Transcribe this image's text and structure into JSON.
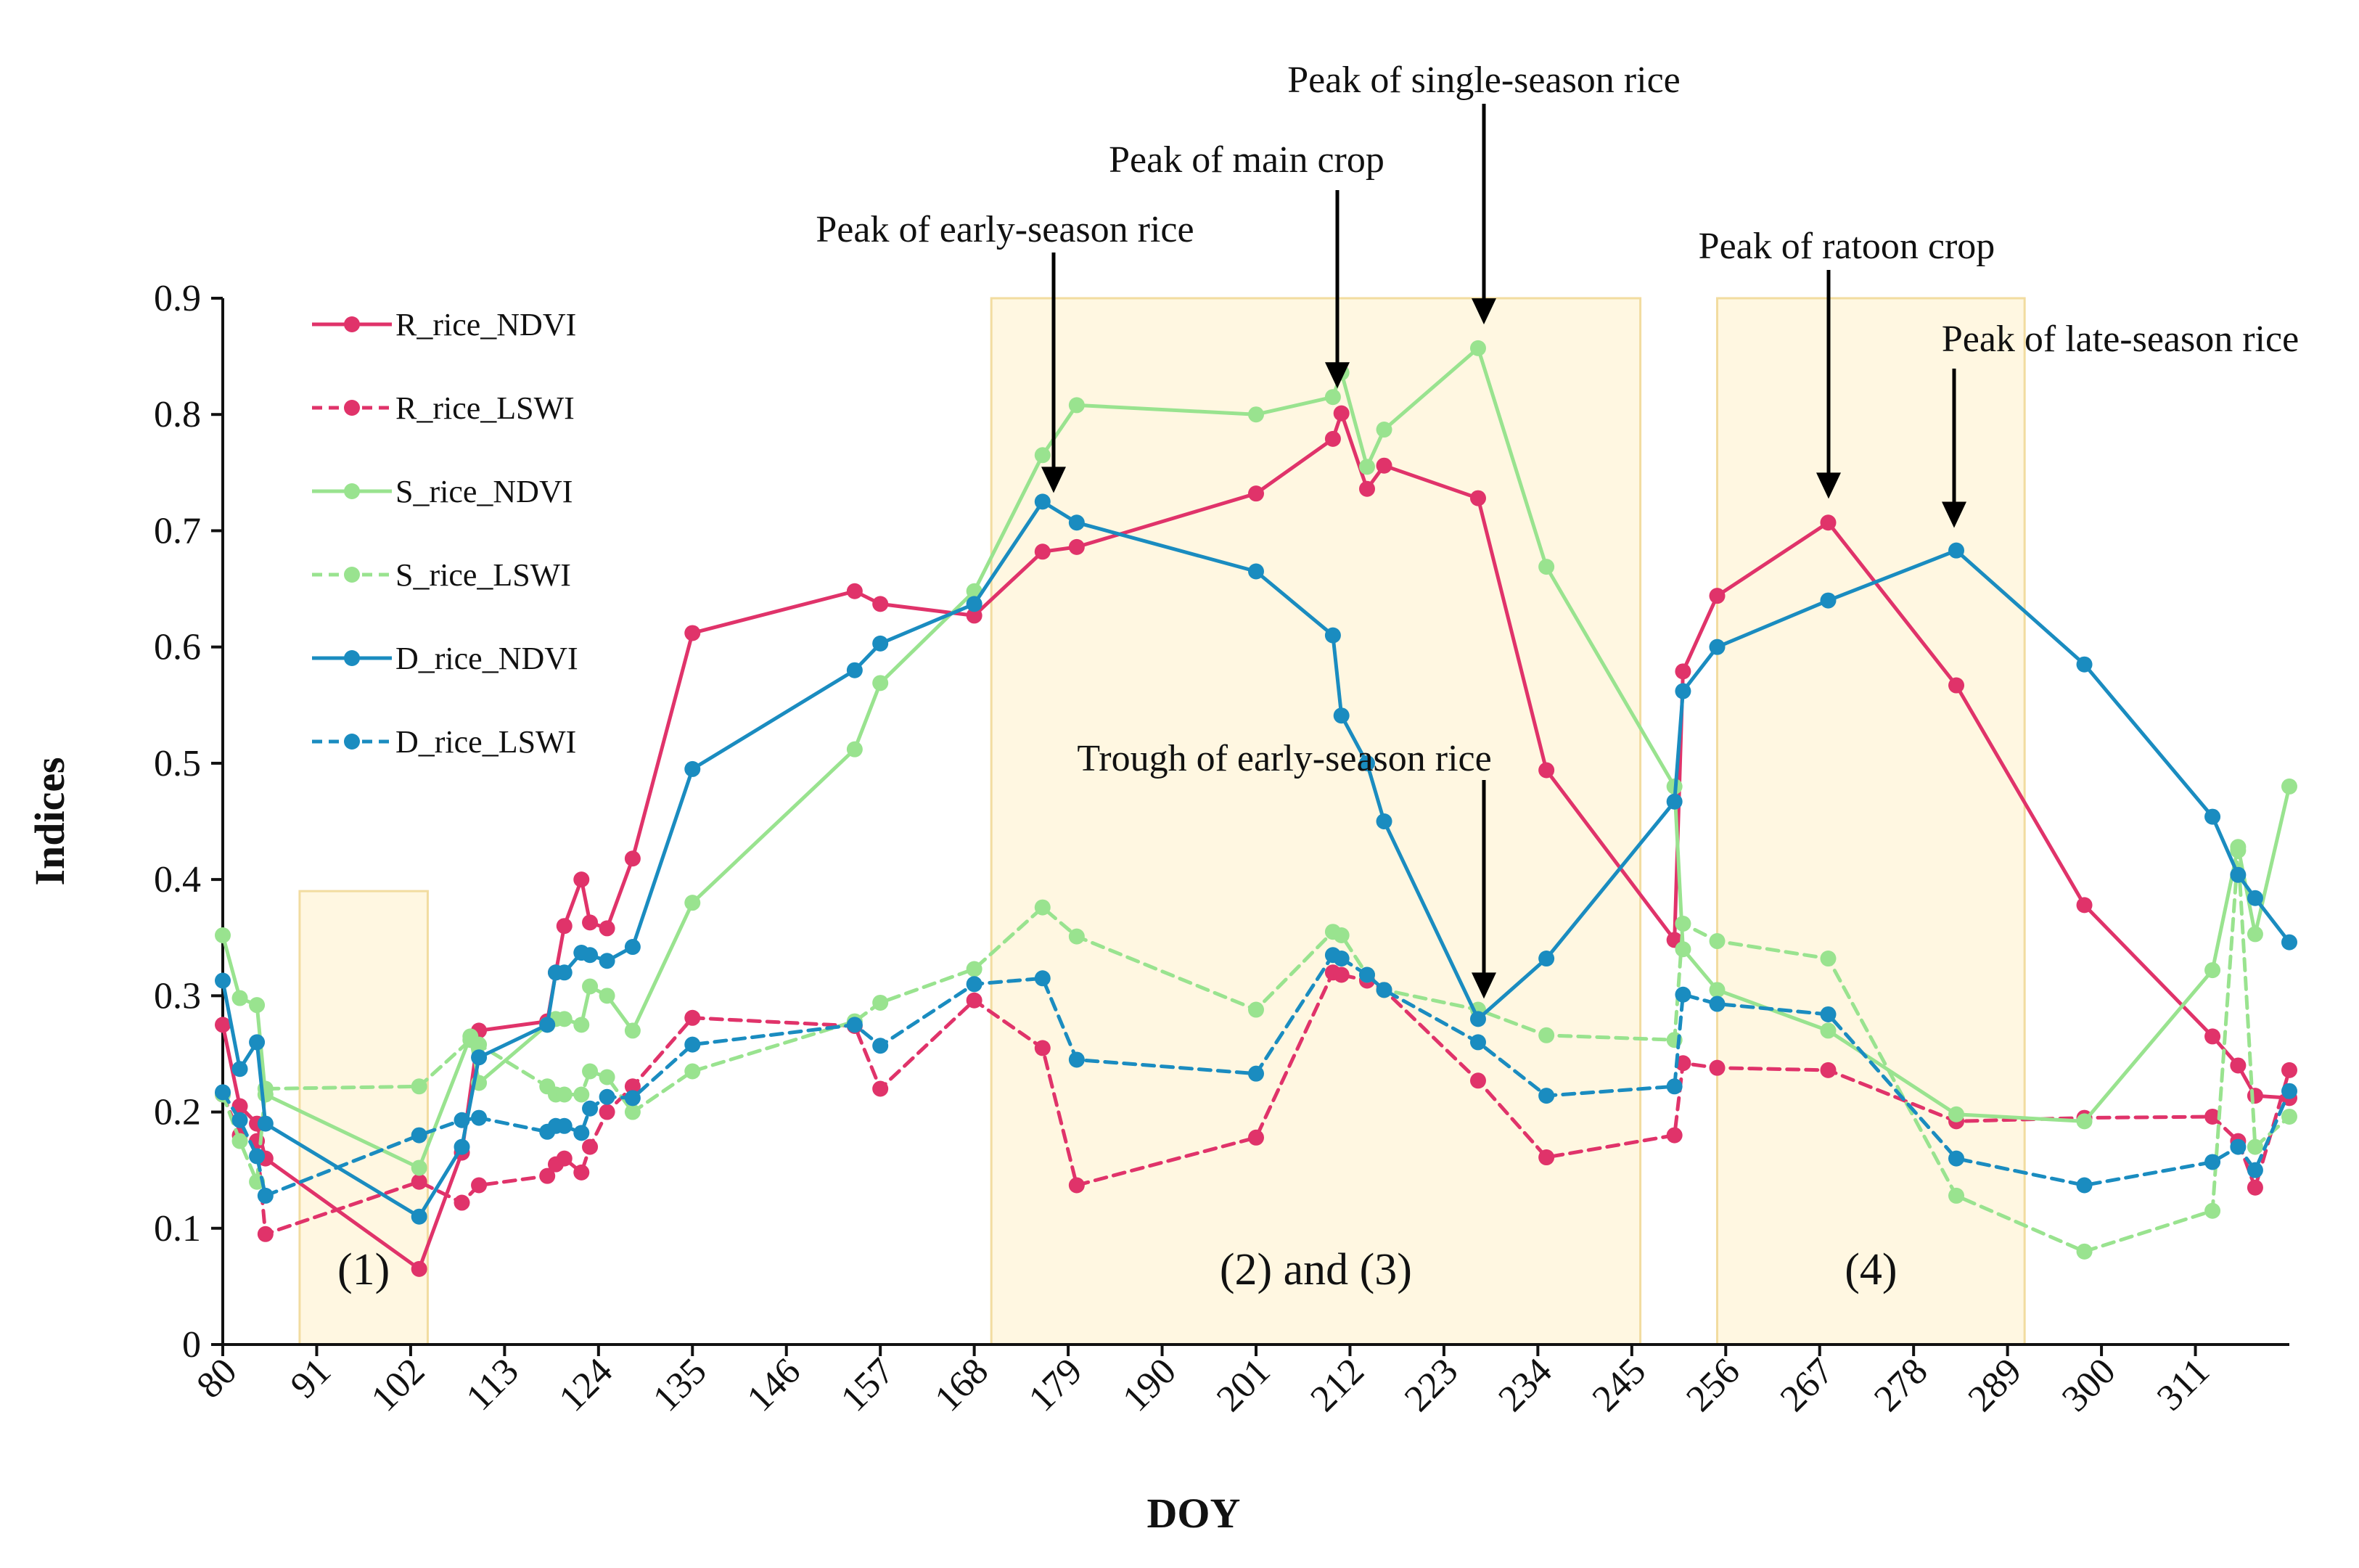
{
  "chart_data": {
    "type": "line",
    "xlabel": "DOY",
    "ylabel": "Indices",
    "xlim": [
      80,
      322
    ],
    "ylim": [
      0,
      0.9
    ],
    "x_ticks": [
      80,
      91,
      102,
      113,
      124,
      135,
      146,
      157,
      168,
      179,
      190,
      201,
      212,
      223,
      234,
      245,
      256,
      267,
      278,
      289,
      300,
      311
    ],
    "y_ticks": [
      0,
      0.1,
      0.2,
      0.3,
      0.4,
      0.5,
      0.6,
      0.7,
      0.8,
      0.9
    ],
    "y_tick_labels": [
      "0",
      "0.1",
      "0.2",
      "0.3",
      "0.4",
      "0.5",
      "0.6",
      "0.7",
      "0.8",
      "0.9"
    ],
    "grid": false,
    "legend_position": "top-left",
    "regions": [
      {
        "label": "(1)",
        "x_start": 89,
        "x_end": 104,
        "y_top": 0.39
      },
      {
        "label": "(2) and (3)",
        "x_start": 170,
        "x_end": 246,
        "y_top": 0.9
      },
      {
        "label": "(4)",
        "x_start": 255,
        "x_end": 291,
        "y_top": 0.9
      }
    ],
    "annotations": [
      {
        "text": "Peak of early-season rice",
        "x": 176,
        "y": 0.725
      },
      {
        "text": "Peak of main crop",
        "x": 212,
        "y": 0.815
      },
      {
        "text": "Peak of single-season rice",
        "x": 227,
        "y": 0.87
      },
      {
        "text": "Peak of ratoon crop",
        "x": 268,
        "y": 0.72
      },
      {
        "text": "Peak of late-season rice",
        "x": 282,
        "y": 0.695
      },
      {
        "text": "Trough of early-season rice",
        "x": 227,
        "y": 0.29
      }
    ],
    "series": [
      {
        "name": "R_rice_NDVI",
        "color": "#e0336a",
        "dashed": false,
        "x": [
          80,
          82,
          84,
          85,
          103,
          108,
          110,
          118,
          119,
          120,
          122,
          123,
          125,
          128,
          135,
          154,
          157,
          168,
          176,
          180,
          201,
          210,
          211,
          214,
          216,
          227,
          235,
          250,
          251,
          255,
          268,
          283,
          298,
          313,
          316,
          318,
          322
        ],
        "y": [
          0.275,
          0.205,
          0.19,
          0.16,
          0.065,
          0.165,
          0.27,
          0.278,
          0.32,
          0.36,
          0.4,
          0.363,
          0.358,
          0.418,
          0.612,
          0.648,
          0.637,
          0.627,
          0.682,
          0.686,
          0.732,
          0.779,
          0.801,
          0.736,
          0.756,
          0.728,
          0.494,
          0.348,
          0.579,
          0.644,
          0.707,
          0.567,
          0.378,
          0.265,
          0.24,
          0.214,
          0.212
        ]
      },
      {
        "name": "R_rice_LSWI",
        "color": "#e0336a",
        "dashed": true,
        "x": [
          80,
          82,
          84,
          85,
          103,
          108,
          110,
          118,
          119,
          120,
          122,
          123,
          125,
          128,
          135,
          154,
          157,
          168,
          176,
          180,
          201,
          210,
          211,
          214,
          216,
          227,
          235,
          250,
          251,
          255,
          268,
          283,
          298,
          313,
          316,
          318,
          322
        ],
        "y": [
          0.215,
          0.18,
          0.175,
          0.095,
          0.14,
          0.122,
          0.137,
          0.145,
          0.155,
          0.16,
          0.148,
          0.17,
          0.2,
          0.222,
          0.281,
          0.274,
          0.22,
          0.296,
          0.255,
          0.137,
          0.178,
          0.32,
          0.318,
          0.313,
          0.305,
          0.227,
          0.161,
          0.18,
          0.242,
          0.238,
          0.236,
          0.192,
          0.195,
          0.196,
          0.175,
          0.135,
          0.236
        ]
      },
      {
        "name": "S_rice_NDVI",
        "color": "#99e38f",
        "dashed": false,
        "x": [
          80,
          82,
          84,
          85,
          103,
          109,
          110,
          118,
          119,
          120,
          122,
          123,
          125,
          128,
          135,
          154,
          157,
          168,
          176,
          180,
          201,
          210,
          211,
          214,
          216,
          227,
          235,
          250,
          251,
          255,
          268,
          283,
          298,
          313,
          316,
          318,
          322
        ],
        "y": [
          0.352,
          0.298,
          0.292,
          0.215,
          0.152,
          0.265,
          0.225,
          0.275,
          0.28,
          0.28,
          0.275,
          0.308,
          0.3,
          0.27,
          0.38,
          0.512,
          0.569,
          0.648,
          0.765,
          0.808,
          0.8,
          0.815,
          0.836,
          0.755,
          0.787,
          0.857,
          0.669,
          0.48,
          0.34,
          0.305,
          0.27,
          0.198,
          0.192,
          0.322,
          0.428,
          0.353,
          0.48
        ]
      },
      {
        "name": "S_rice_LSWI",
        "color": "#99e38f",
        "dashed": true,
        "x": [
          80,
          82,
          84,
          85,
          103,
          109,
          110,
          118,
          119,
          120,
          122,
          123,
          125,
          128,
          135,
          154,
          157,
          168,
          176,
          180,
          201,
          210,
          211,
          214,
          216,
          227,
          235,
          250,
          251,
          255,
          268,
          283,
          298,
          313,
          316,
          318,
          322
        ],
        "y": [
          0.215,
          0.175,
          0.14,
          0.22,
          0.222,
          0.262,
          0.258,
          0.222,
          0.215,
          0.215,
          0.215,
          0.235,
          0.23,
          0.2,
          0.235,
          0.278,
          0.294,
          0.323,
          0.376,
          0.351,
          0.288,
          0.355,
          0.352,
          0.318,
          0.305,
          0.288,
          0.266,
          0.262,
          0.362,
          0.347,
          0.332,
          0.128,
          0.08,
          0.115,
          0.425,
          0.17,
          0.196
        ]
      },
      {
        "name": "D_rice_NDVI",
        "color": "#1a8cc0",
        "dashed": false,
        "x": [
          80,
          82,
          84,
          85,
          103,
          108,
          110,
          118,
          119,
          120,
          122,
          123,
          125,
          128,
          135,
          154,
          157,
          168,
          176,
          180,
          201,
          210,
          211,
          214,
          216,
          227,
          235,
          250,
          251,
          255,
          268,
          283,
          298,
          313,
          316,
          318,
          322
        ],
        "y": [
          0.313,
          0.237,
          0.26,
          0.19,
          0.11,
          0.17,
          0.247,
          0.275,
          0.32,
          0.32,
          0.337,
          0.335,
          0.33,
          0.342,
          0.495,
          0.58,
          0.603,
          0.637,
          0.725,
          0.707,
          0.665,
          0.61,
          0.541,
          0.5,
          0.45,
          0.28,
          0.332,
          0.467,
          0.562,
          0.6,
          0.64,
          0.683,
          0.585,
          0.454,
          0.404,
          0.384,
          0.346
        ]
      },
      {
        "name": "D_rice_LSWI",
        "color": "#1a8cc0",
        "dashed": true,
        "x": [
          80,
          82,
          84,
          85,
          103,
          108,
          110,
          118,
          119,
          120,
          122,
          123,
          125,
          128,
          135,
          154,
          157,
          168,
          176,
          180,
          201,
          210,
          211,
          214,
          216,
          227,
          235,
          250,
          251,
          255,
          268,
          283,
          298,
          313,
          316,
          318,
          322
        ],
        "y": [
          0.217,
          0.193,
          0.162,
          0.128,
          0.18,
          0.193,
          0.195,
          0.183,
          0.188,
          0.188,
          0.182,
          0.203,
          0.213,
          0.212,
          0.258,
          0.275,
          0.257,
          0.31,
          0.315,
          0.245,
          0.233,
          0.335,
          0.332,
          0.318,
          0.305,
          0.26,
          0.214,
          0.222,
          0.301,
          0.293,
          0.284,
          0.16,
          0.137,
          0.157,
          0.17,
          0.15,
          0.218
        ]
      }
    ]
  }
}
